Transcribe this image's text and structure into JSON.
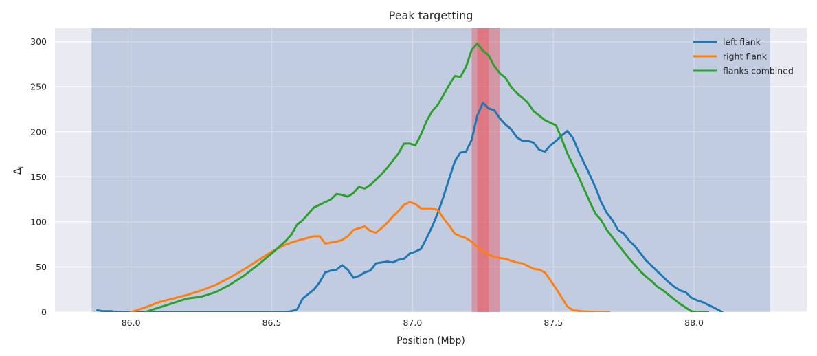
{
  "chart_data": {
    "type": "line",
    "title": "Peak targetting",
    "xlabel": "Position (Mbp)",
    "ylabel": "Δ",
    "ylabel_subscript": "i",
    "xlim": [
      85.73,
      88.4
    ],
    "ylim": [
      0,
      315
    ],
    "xticks": [
      86.0,
      86.5,
      87.0,
      87.5,
      88.0
    ],
    "xtick_labels": [
      "86.0",
      "86.5",
      "87.0",
      "87.5",
      "88.0"
    ],
    "yticks": [
      0,
      50,
      100,
      150,
      200,
      250,
      300
    ],
    "ytick_labels": [
      "0",
      "50",
      "100",
      "150",
      "200",
      "250",
      "300"
    ],
    "grid": true,
    "legend_position": "top-right",
    "background_color": "#eaeaf2",
    "bands": [
      {
        "x_start": 85.86,
        "x_end": 88.27,
        "color": "#4c72b0",
        "opacity": 0.25
      },
      {
        "x_start": 87.21,
        "x_end": 87.31,
        "color": "#e8545a",
        "opacity": 0.45
      },
      {
        "x_start": 87.23,
        "x_end": 87.27,
        "color": "#e8545a",
        "opacity": 0.45
      }
    ],
    "series": [
      {
        "name": "left flank",
        "color": "#1f77b4",
        "x": [
          85.88,
          85.9,
          85.93,
          85.95,
          85.98,
          86.0,
          86.05,
          86.1,
          86.15,
          86.2,
          86.25,
          86.3,
          86.35,
          86.4,
          86.45,
          86.5,
          86.55,
          86.57,
          86.59,
          86.61,
          86.63,
          86.65,
          86.67,
          86.69,
          86.71,
          86.73,
          86.75,
          86.77,
          86.79,
          86.81,
          86.83,
          86.85,
          86.87,
          86.89,
          86.91,
          86.93,
          86.95,
          86.97,
          86.99,
          87.01,
          87.03,
          87.05,
          87.07,
          87.09,
          87.11,
          87.13,
          87.15,
          87.17,
          87.19,
          87.21,
          87.23,
          87.25,
          87.27,
          87.29,
          87.31,
          87.33,
          87.35,
          87.37,
          87.39,
          87.41,
          87.43,
          87.45,
          87.47,
          87.49,
          87.51,
          87.53,
          87.55,
          87.57,
          87.59,
          87.61,
          87.63,
          87.65,
          87.67,
          87.69,
          87.71,
          87.73,
          87.75,
          87.77,
          87.79,
          87.81,
          87.83,
          87.85,
          87.87,
          87.89,
          87.91,
          87.93,
          87.95,
          87.97,
          87.99,
          88.01,
          88.03,
          88.05,
          88.07,
          88.1
        ],
        "values": [
          2,
          1,
          1,
          0,
          0,
          0,
          0,
          0,
          0,
          0,
          0,
          0,
          0,
          0,
          0,
          0,
          0,
          1,
          3,
          15,
          20,
          25,
          33,
          44,
          46,
          47,
          52,
          47,
          38,
          40,
          44,
          46,
          54,
          55,
          56,
          55,
          58,
          59,
          65,
          67,
          70,
          82,
          95,
          110,
          128,
          148,
          167,
          177,
          178,
          191,
          218,
          232,
          226,
          224,
          215,
          208,
          203,
          194,
          190,
          190,
          188,
          180,
          178,
          185,
          190,
          196,
          201,
          193,
          178,
          165,
          152,
          138,
          122,
          110,
          102,
          91,
          87,
          79,
          73,
          65,
          57,
          51,
          45,
          39,
          33,
          28,
          24,
          22,
          16,
          13,
          11,
          8,
          5,
          0
        ]
      },
      {
        "name": "right flank",
        "color": "#ff7f0e",
        "x": [
          86.0,
          86.05,
          86.1,
          86.15,
          86.2,
          86.25,
          86.3,
          86.35,
          86.4,
          86.45,
          86.5,
          86.55,
          86.6,
          86.65,
          86.67,
          86.69,
          86.71,
          86.73,
          86.75,
          86.77,
          86.79,
          86.81,
          86.83,
          86.85,
          86.87,
          86.89,
          86.91,
          86.93,
          86.95,
          86.97,
          86.99,
          87.01,
          87.03,
          87.05,
          87.07,
          87.09,
          87.11,
          87.13,
          87.15,
          87.17,
          87.19,
          87.21,
          87.23,
          87.25,
          87.27,
          87.29,
          87.31,
          87.33,
          87.35,
          87.37,
          87.39,
          87.41,
          87.43,
          87.45,
          87.47,
          87.49,
          87.51,
          87.53,
          87.55,
          87.57,
          87.6,
          87.65,
          87.7
        ],
        "values": [
          0,
          5,
          11,
          15,
          19,
          24,
          30,
          38,
          47,
          57,
          67,
          75,
          80,
          84,
          84,
          76,
          77,
          78,
          80,
          84,
          91,
          93,
          95,
          90,
          88,
          93,
          99,
          106,
          112,
          119,
          122,
          120,
          115,
          115,
          115,
          113,
          104,
          96,
          87,
          84,
          82,
          78,
          72,
          67,
          64,
          61,
          60,
          59,
          57,
          55,
          54,
          51,
          48,
          47,
          44,
          35,
          26,
          16,
          6,
          2,
          1,
          0,
          0
        ]
      },
      {
        "name": "flanks combined",
        "color": "#2ca02c",
        "x": [
          86.05,
          86.1,
          86.15,
          86.2,
          86.25,
          86.3,
          86.35,
          86.4,
          86.45,
          86.5,
          86.55,
          86.57,
          86.59,
          86.61,
          86.63,
          86.65,
          86.67,
          86.69,
          86.71,
          86.73,
          86.75,
          86.77,
          86.79,
          86.81,
          86.83,
          86.85,
          86.87,
          86.89,
          86.91,
          86.93,
          86.95,
          86.97,
          86.99,
          87.01,
          87.03,
          87.05,
          87.07,
          87.09,
          87.11,
          87.13,
          87.15,
          87.17,
          87.19,
          87.21,
          87.23,
          87.25,
          87.27,
          87.29,
          87.31,
          87.33,
          87.35,
          87.37,
          87.39,
          87.41,
          87.43,
          87.45,
          87.47,
          87.49,
          87.51,
          87.53,
          87.55,
          87.57,
          87.59,
          87.61,
          87.63,
          87.65,
          87.67,
          87.69,
          87.71,
          87.73,
          87.75,
          87.77,
          87.79,
          87.81,
          87.83,
          87.85,
          87.87,
          87.89,
          87.91,
          87.93,
          87.95,
          87.97,
          87.99,
          88.01,
          88.03,
          88.05
        ],
        "values": [
          0,
          5,
          10,
          15,
          17,
          22,
          30,
          40,
          52,
          65,
          79,
          86,
          97,
          102,
          109,
          116,
          119,
          122,
          125,
          131,
          130,
          128,
          132,
          139,
          137,
          141,
          147,
          153,
          160,
          168,
          176,
          187,
          187,
          185,
          197,
          212,
          223,
          230,
          241,
          252,
          262,
          261,
          272,
          291,
          298,
          290,
          285,
          273,
          265,
          260,
          250,
          243,
          238,
          232,
          223,
          218,
          213,
          210,
          207,
          192,
          176,
          163,
          150,
          136,
          122,
          109,
          102,
          91,
          83,
          75,
          67,
          59,
          52,
          45,
          39,
          34,
          28,
          24,
          19,
          14,
          9,
          5,
          1,
          0,
          0,
          0
        ]
      }
    ]
  }
}
